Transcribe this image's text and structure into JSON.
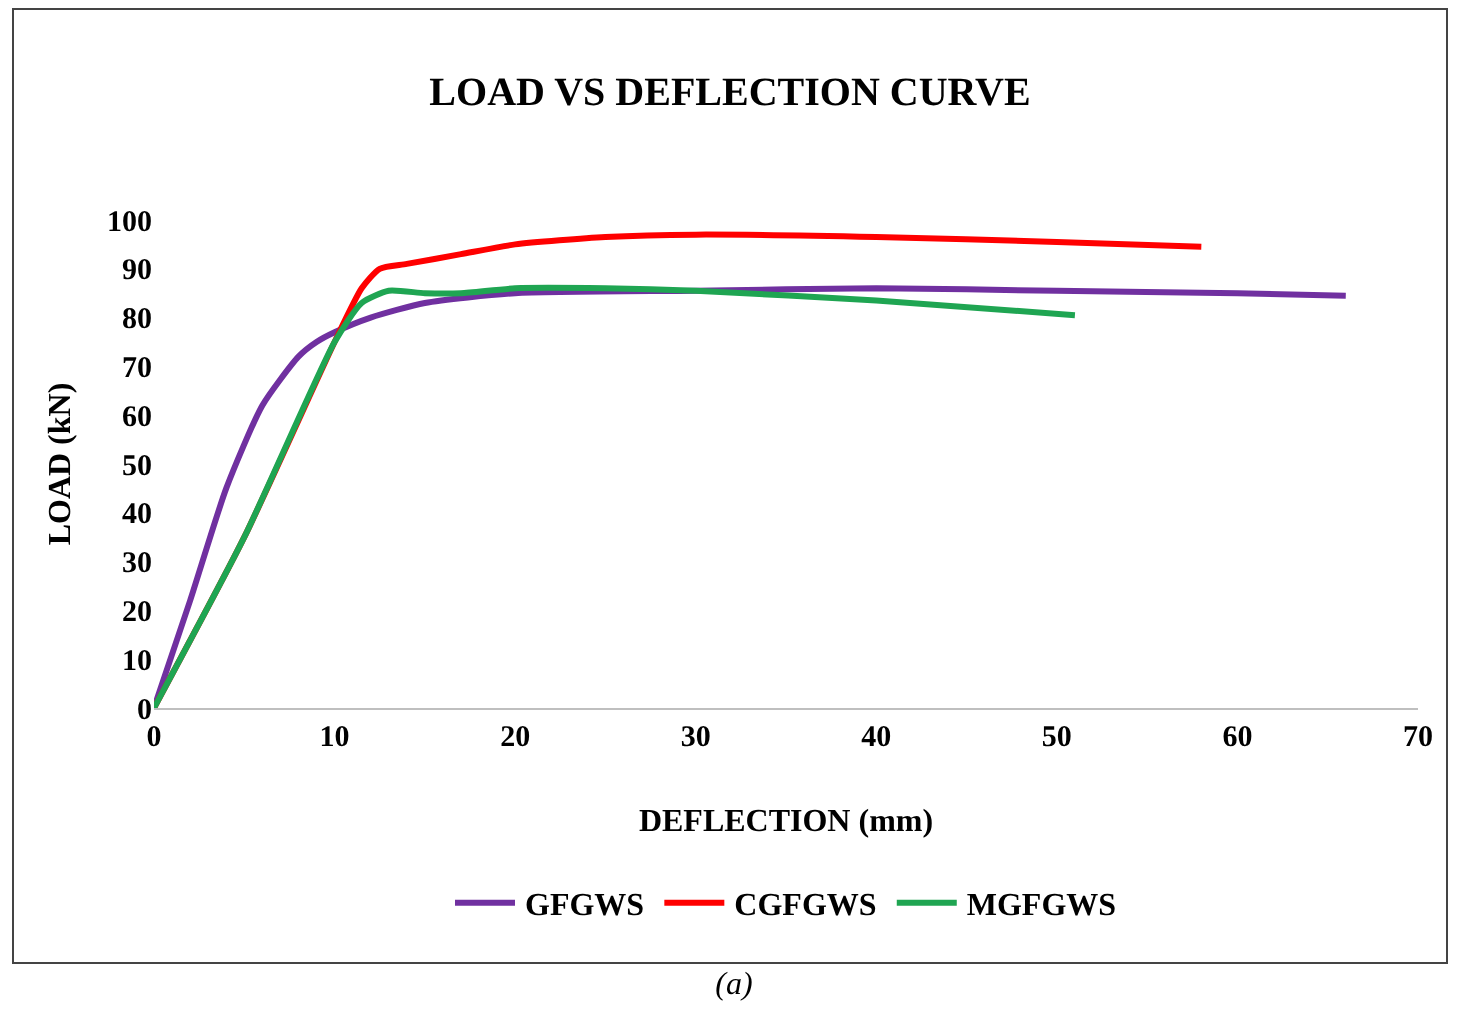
{
  "chart_data": {
    "type": "line",
    "title": "LOAD VS DEFLECTION CURVE",
    "xlabel": "DEFLECTION (mm)",
    "ylabel": "LOAD (kN)",
    "xlim": [
      0,
      70
    ],
    "xticks": [
      0,
      10,
      20,
      30,
      40,
      50,
      60,
      70
    ],
    "ylim": [
      0,
      100
    ],
    "yticks": [
      0,
      10,
      20,
      30,
      40,
      50,
      60,
      70,
      80,
      90,
      100
    ],
    "grid": false,
    "legend": "bottom",
    "marker": "none",
    "line_style": "solid",
    "annotations": [
      "(a)"
    ],
    "series": [
      {
        "name": "GFGWS",
        "color": "#7030a0",
        "x": [
          0,
          2,
          4,
          6,
          8,
          9,
          10,
          12,
          15,
          20,
          30,
          40,
          50,
          60,
          66
        ],
        "values": [
          0,
          22,
          45,
          62,
          72,
          75,
          77,
          80,
          83,
          85,
          85.5,
          86,
          85.5,
          85,
          84.5
        ]
      },
      {
        "name": "CGFGWS",
        "color": "#ff0000",
        "x": [
          0,
          5,
          10,
          11.5,
          12.5,
          14,
          17,
          20,
          25,
          30,
          40,
          50,
          58
        ],
        "values": [
          0,
          35,
          75,
          86,
          90,
          91,
          93,
          95,
          96.5,
          97,
          96.5,
          95.5,
          94.5
        ]
      },
      {
        "name": "MGFGWS",
        "color": "#1fa552",
        "x": [
          0,
          5,
          10,
          11.5,
          13,
          15,
          17,
          20,
          25,
          30,
          40,
          51
        ],
        "values": [
          0,
          35,
          75,
          83,
          85.5,
          85,
          85,
          86,
          86,
          85.5,
          83.5,
          80.5
        ]
      }
    ]
  }
}
